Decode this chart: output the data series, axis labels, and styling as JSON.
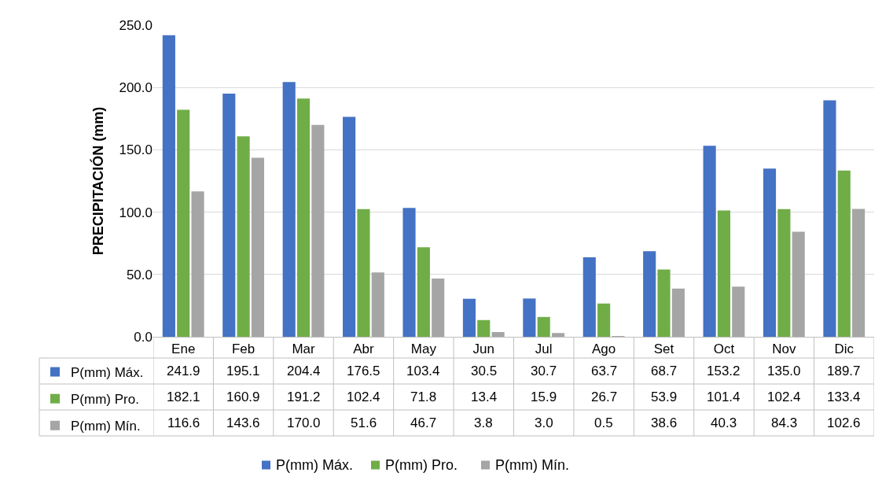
{
  "chart_data": {
    "type": "bar",
    "ylabel": "PRECIPITACIÓN (mm)",
    "categories": [
      "Ene",
      "Feb",
      "Mar",
      "Abr",
      "May",
      "Jun",
      "Jul",
      "Ago",
      "Set",
      "Oct",
      "Nov",
      "Dic"
    ],
    "series": [
      {
        "name": "P(mm) Máx.",
        "color": "#4472c4",
        "values": [
          241.9,
          195.1,
          204.4,
          176.5,
          103.4,
          30.5,
          30.7,
          63.7,
          68.7,
          153.2,
          135.0,
          189.7
        ],
        "value_labels": [
          "241.9",
          "195.1",
          "204.4",
          "176.5",
          "103.4",
          "30.5",
          "30.7",
          "63.7",
          "68.7",
          "153.2",
          "135.0",
          "189.7"
        ]
      },
      {
        "name": "P(mm) Pro.",
        "color": "#70ad47",
        "values": [
          182.1,
          160.9,
          191.2,
          102.4,
          71.8,
          13.4,
          15.9,
          26.7,
          53.9,
          101.4,
          102.4,
          133.4
        ],
        "value_labels": [
          "182.1",
          "160.9",
          "191.2",
          "102.4",
          "71.8",
          "13.4",
          "15.9",
          "26.7",
          "53.9",
          "101.4",
          "102.4",
          "133.4"
        ]
      },
      {
        "name": "P(mm) Mín.",
        "color": "#a5a5a5",
        "values": [
          116.6,
          143.6,
          170.0,
          51.6,
          46.7,
          3.8,
          3.0,
          0.5,
          38.6,
          40.3,
          84.3,
          102.6
        ],
        "value_labels": [
          "116.6",
          "143.6",
          "170.0",
          "51.6",
          "46.7",
          "3.8",
          "3.0",
          "0.5",
          "38.6",
          "40.3",
          "84.3",
          "102.6"
        ]
      }
    ],
    "ylim": [
      0,
      250
    ],
    "yticks": [
      {
        "value": 0,
        "label": "0.0"
      },
      {
        "value": 50,
        "label": "50.0"
      },
      {
        "value": 100,
        "label": "100.0"
      },
      {
        "value": 150,
        "label": "150.0"
      },
      {
        "value": 200,
        "label": "200.0"
      },
      {
        "value": 250,
        "label": "250.0"
      }
    ],
    "grid": "y",
    "legend": "bottom"
  }
}
